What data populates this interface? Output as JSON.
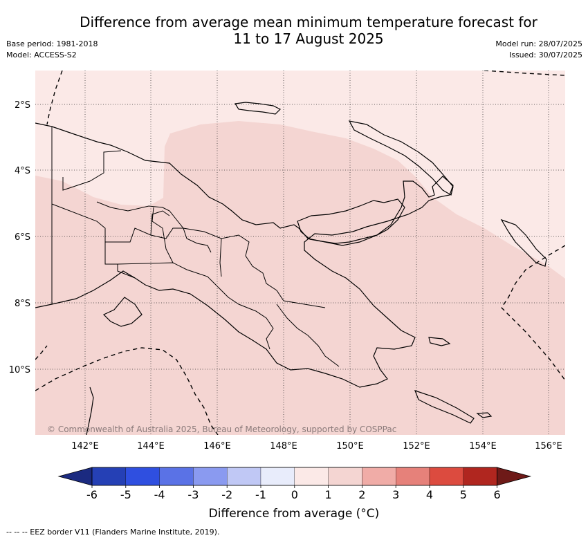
{
  "title_line1": "Difference from average mean minimum temperature forecast for",
  "title_line2": "11 to 17 August 2025",
  "base_period": "Base period: 1981-2018",
  "model": "Model: ACCESS-S2",
  "model_run": "Model run: 28/07/2025",
  "issued": "Issued: 30/07/2025",
  "copyright": "© Commonwealth of Australia 2025, Bureau of Meteorology, supported by COSPPac",
  "lat_labels": [
    "2°S",
    "4°S",
    "6°S",
    "8°S",
    "10°S"
  ],
  "lon_labels": [
    "142°E",
    "144°E",
    "146°E",
    "148°E",
    "150°E",
    "152°E",
    "154°E",
    "156°E"
  ],
  "colorbar": {
    "title": "Difference from average (°C)",
    "ticks": [
      "-6",
      "-5",
      "-4",
      "-3",
      "-2",
      "-1",
      "0",
      "1",
      "2",
      "3",
      "4",
      "5",
      "6"
    ],
    "colors": [
      "#1b2a80",
      "#2540b5",
      "#2f4fe0",
      "#5a72e6",
      "#8a9af0",
      "#c0c8f5",
      "#e8ecfb",
      "#fbe9e7",
      "#f4d5d2",
      "#f0aca7",
      "#e6817a",
      "#dc4b3f",
      "#b0261f",
      "#6e1a18"
    ]
  },
  "legend_colors": {
    "light_anomaly": "#fbe9e7",
    "moderate_anomaly": "#f4d5d2"
  },
  "eez_note": "--  --  -- EEZ border V11 (Flanders Marine Institute, 2019)."
}
